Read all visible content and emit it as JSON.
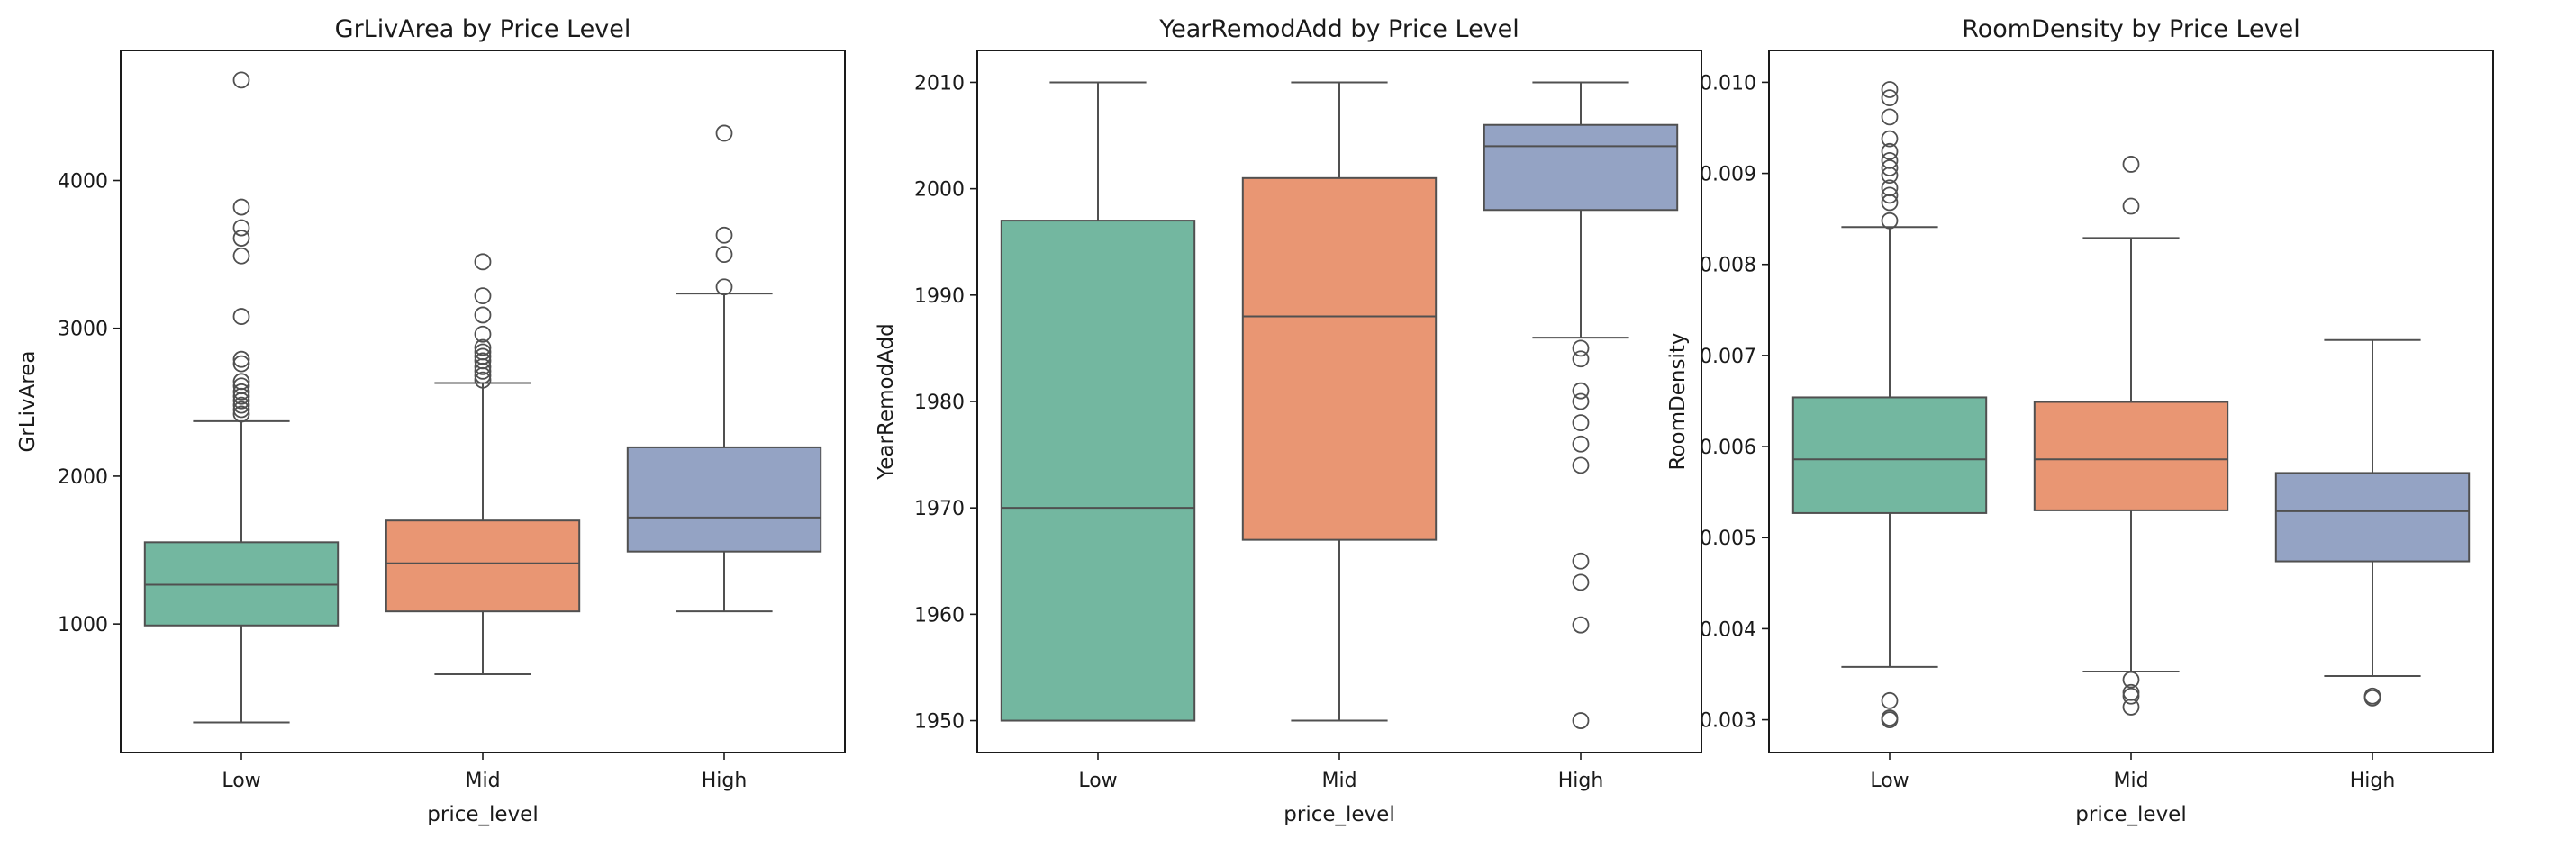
{
  "chart_data": [
    {
      "type": "box",
      "title": "GrLivArea by Price Level",
      "xlabel": "price_level",
      "ylabel": "GrLivArea",
      "categories": [
        "Low",
        "Mid",
        "High"
      ],
      "ylim": [
        130,
        4880
      ],
      "yticks": [
        1000,
        2000,
        3000,
        4000
      ],
      "yticklabels": [
        "1000",
        "2000",
        "3000",
        "4000"
      ],
      "boxes": [
        {
          "whisker_low": 334,
          "q1": 990,
          "median": 1266,
          "q3": 1553,
          "whisker_high": 2372,
          "outliers": [
            2420,
            2450,
            2480,
            2510,
            2540,
            2570,
            2610,
            2640,
            2760,
            2790,
            3080,
            3490,
            3610,
            3680,
            3820,
            4680
          ],
          "color": "#73b7a0"
        },
        {
          "whisker_low": 660,
          "q1": 1085,
          "median": 1410,
          "q3": 1700,
          "whisker_high": 2630,
          "outliers": [
            2650,
            2680,
            2710,
            2740,
            2780,
            2810,
            2840,
            2870,
            2960,
            3090,
            3220,
            3450
          ],
          "color": "#e99673"
        },
        {
          "whisker_low": 1085,
          "q1": 1490,
          "median": 1720,
          "q3": 2195,
          "whisker_high": 3235,
          "outliers": [
            3280,
            3500,
            3630,
            4320
          ],
          "color": "#94a3c4"
        }
      ]
    },
    {
      "type": "box",
      "title": "YearRemodAdd by Price Level",
      "xlabel": "price_level",
      "ylabel": "YearRemodAdd",
      "categories": [
        "Low",
        "Mid",
        "High"
      ],
      "ylim": [
        1947,
        2013
      ],
      "yticks": [
        1950,
        1960,
        1970,
        1980,
        1990,
        2000,
        2010
      ],
      "yticklabels": [
        "1950",
        "1960",
        "1970",
        "1980",
        "1990",
        "2000",
        "2010"
      ],
      "boxes": [
        {
          "whisker_low": 1950,
          "q1": 1950,
          "median": 1970,
          "q3": 1997,
          "whisker_high": 2010,
          "outliers": [],
          "color": "#73b7a0"
        },
        {
          "whisker_low": 1950,
          "q1": 1967,
          "median": 1988,
          "q3": 2001,
          "whisker_high": 2010,
          "outliers": [],
          "color": "#e99673"
        },
        {
          "whisker_low": 1986,
          "q1": 1998,
          "median": 2004,
          "q3": 2006,
          "whisker_high": 2010,
          "outliers": [
            1950,
            1959,
            1963,
            1965,
            1974,
            1976,
            1978,
            1980,
            1981,
            1984,
            1985
          ],
          "color": "#94a3c4"
        }
      ]
    },
    {
      "type": "box",
      "title": "RoomDensity by Price Level",
      "xlabel": "price_level",
      "ylabel": "RoomDensity",
      "categories": [
        "Low",
        "Mid",
        "High"
      ],
      "ylim": [
        0.00264,
        0.01035
      ],
      "yticks": [
        0.003,
        0.004,
        0.005,
        0.006,
        0.007,
        0.008,
        0.009,
        0.01
      ],
      "yticklabels": [
        "0.003",
        "0.004",
        "0.005",
        "0.006",
        "0.007",
        "0.008",
        "0.009",
        "0.010"
      ],
      "boxes": [
        {
          "whisker_low": 0.00358,
          "q1": 0.00527,
          "median": 0.00586,
          "q3": 0.00654,
          "whisker_high": 0.00841,
          "outliers": [
            0.003,
            0.00302,
            0.00321,
            0.00848,
            0.00868,
            0.00876,
            0.00884,
            0.00898,
            0.00906,
            0.00914,
            0.00924,
            0.00938,
            0.00962,
            0.00983,
            0.00992
          ],
          "color": "#73b7a0"
        },
        {
          "whisker_low": 0.00353,
          "q1": 0.0053,
          "median": 0.00586,
          "q3": 0.00649,
          "whisker_high": 0.00829,
          "outliers": [
            0.00314,
            0.00326,
            0.0033,
            0.00344,
            0.00864,
            0.0091
          ],
          "color": "#e99673"
        },
        {
          "whisker_low": 0.00348,
          "q1": 0.00474,
          "median": 0.00529,
          "q3": 0.00571,
          "whisker_high": 0.00717,
          "outliers": [
            0.00324,
            0.00326
          ],
          "color": "#94a3c4"
        }
      ]
    }
  ]
}
